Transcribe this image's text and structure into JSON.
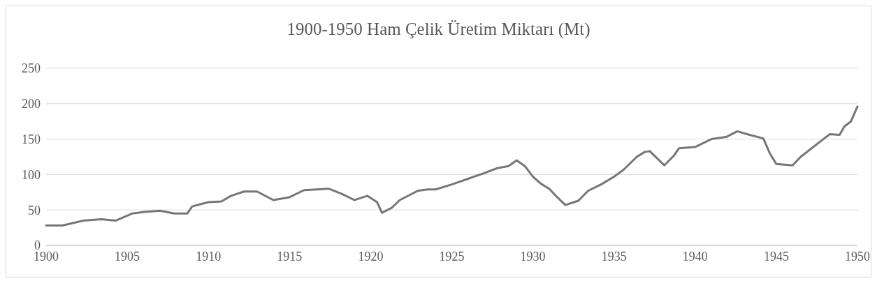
{
  "chart_data": {
    "type": "line",
    "title": "1900-1950 Ham Çelik Üretim Miktarı (Mt)",
    "x": [
      1900,
      1901,
      1902.3,
      1903.4,
      1904.3,
      1905.3,
      1906,
      1907,
      1907.9,
      1908.7,
      1909,
      1910,
      1910.8,
      1911.4,
      1912.2,
      1913,
      1914,
      1915,
      1915.9,
      1916.7,
      1917.4,
      1918.2,
      1919,
      1919.8,
      1920.4,
      1920.7,
      1921.3,
      1921.8,
      1922.9,
      1923.5,
      1924,
      1925,
      1926,
      1927,
      1927.8,
      1928.5,
      1929,
      1929.5,
      1930,
      1930.5,
      1931,
      1931.5,
      1932,
      1932.8,
      1933.4,
      1934.2,
      1935,
      1935.6,
      1936.4,
      1936.9,
      1937.2,
      1938.1,
      1938.7,
      1939,
      1940,
      1941,
      1941.9,
      1942.6,
      1943.2,
      1944.2,
      1944.6,
      1945,
      1946,
      1946.5,
      1947.9,
      1948.3,
      1948.9,
      1949.2,
      1949.6,
      1950
    ],
    "series": [
      {
        "color": "#767676",
        "values": [
          28,
          28,
          35,
          37,
          35,
          45,
          47,
          49,
          45,
          45,
          55,
          61,
          62,
          70,
          76,
          76,
          64,
          68,
          78,
          79,
          80,
          73,
          64,
          70,
          61,
          46,
          53,
          64,
          77,
          79,
          79,
          86,
          94,
          102,
          109,
          112,
          120,
          112,
          97,
          87,
          80,
          68,
          57,
          63,
          77,
          86,
          97,
          107,
          125,
          132,
          133,
          113,
          127,
          137,
          139,
          150,
          153,
          161,
          157,
          151,
          130,
          115,
          113,
          125,
          150,
          157,
          156,
          168,
          175,
          196
        ]
      }
    ],
    "xlim": [
      1900,
      1950
    ],
    "xticks": [
      1900,
      1905,
      1910,
      1915,
      1920,
      1925,
      1930,
      1935,
      1940,
      1945,
      1950
    ],
    "ylim": [
      0,
      250
    ],
    "yticks": [
      0,
      50,
      100,
      150,
      200,
      250
    ],
    "grid": "y",
    "marker": "none",
    "line_style": "solid"
  }
}
